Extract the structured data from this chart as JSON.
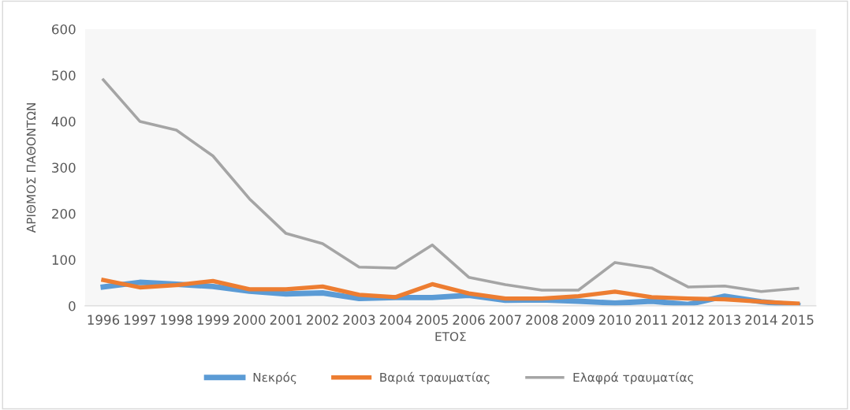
{
  "chart_data": {
    "type": "line",
    "xlabel": "ΕΤΟΣ",
    "ylabel": "ΑΡΙΘΜΟΣ ΠΑΘΟΝΤΩΝ",
    "categories": [
      "1996",
      "1997",
      "1998",
      "1999",
      "2000",
      "2001",
      "2002",
      "2003",
      "2004",
      "2005",
      "2006",
      "2007",
      "2008",
      "2009",
      "2010",
      "2011",
      "2012",
      "2013",
      "2014",
      "2015"
    ],
    "series": [
      {
        "name": "Νεκρός",
        "color": "#5b9bd5",
        "values": [
          41,
          51,
          47,
          42,
          32,
          26,
          28,
          16,
          18,
          18,
          23,
          12,
          13,
          10,
          6,
          10,
          3,
          21,
          9,
          1
        ]
      },
      {
        "name": "Βαριά τραυματίας",
        "color": "#ed7d31",
        "values": [
          56,
          40,
          45,
          54,
          36,
          36,
          42,
          24,
          19,
          47,
          27,
          16,
          16,
          21,
          31,
          19,
          16,
          14,
          9,
          5
        ]
      },
      {
        "name": "Ελαφρά τραυματίας",
        "color": "#a5a5a5",
        "values": [
          490,
          400,
          381,
          325,
          232,
          157,
          135,
          84,
          82,
          132,
          62,
          46,
          34,
          34,
          94,
          82,
          41,
          43,
          31,
          38
        ]
      }
    ],
    "ylim": [
      0,
      600
    ],
    "yticks": [
      0,
      100,
      200,
      300,
      400,
      500,
      600
    ],
    "grid": false,
    "legend": "bottom",
    "marker": "none",
    "line_style": "solid"
  }
}
